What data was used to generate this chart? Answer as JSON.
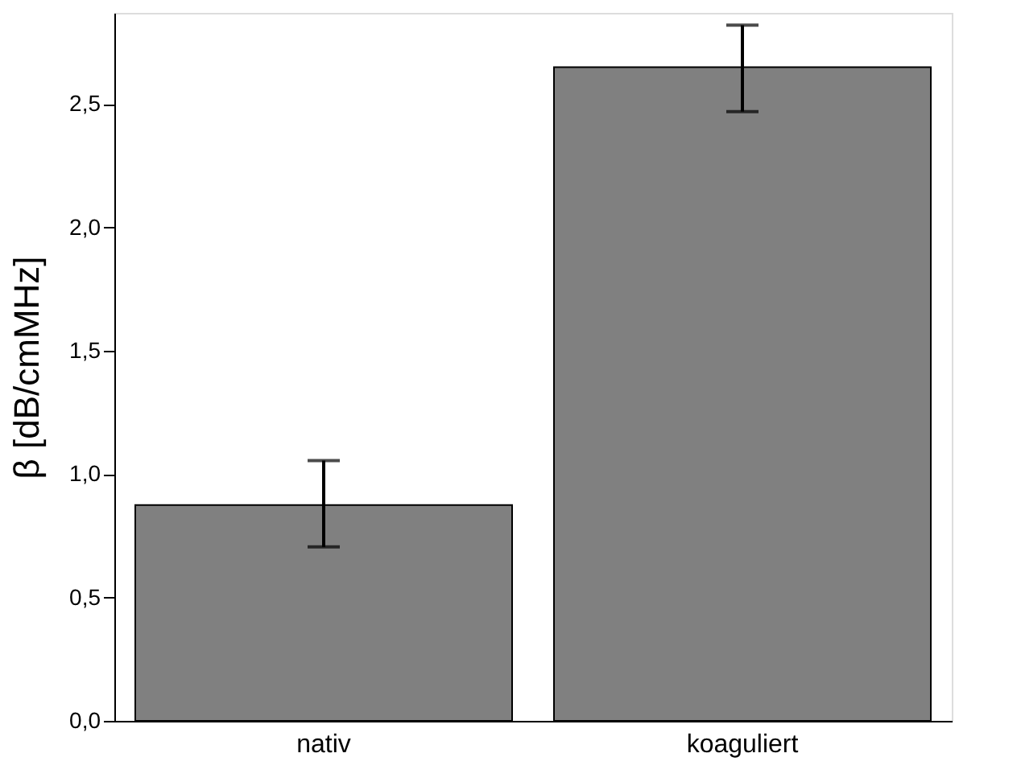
{
  "chart_data": {
    "type": "bar",
    "ylabel": "β [dB/cmMHz]",
    "categories": [
      "nativ",
      "koaguliert"
    ],
    "values": [
      0.875,
      2.65
    ],
    "errors": [
      [
        0.705,
        1.055
      ],
      [
        2.47,
        2.82
      ]
    ],
    "color": "#808080",
    "ylim": [
      0,
      2.87
    ],
    "yticks": [
      {
        "value": 0,
        "label": "0,0"
      },
      {
        "value": 0.5,
        "label": "0,5"
      },
      {
        "value": 1.0,
        "label": "1,0"
      },
      {
        "value": 1.5,
        "label": "1,5"
      },
      {
        "value": 2.0,
        "label": "2,0"
      },
      {
        "value": 2.5,
        "label": "2,5"
      }
    ],
    "grid": false
  }
}
